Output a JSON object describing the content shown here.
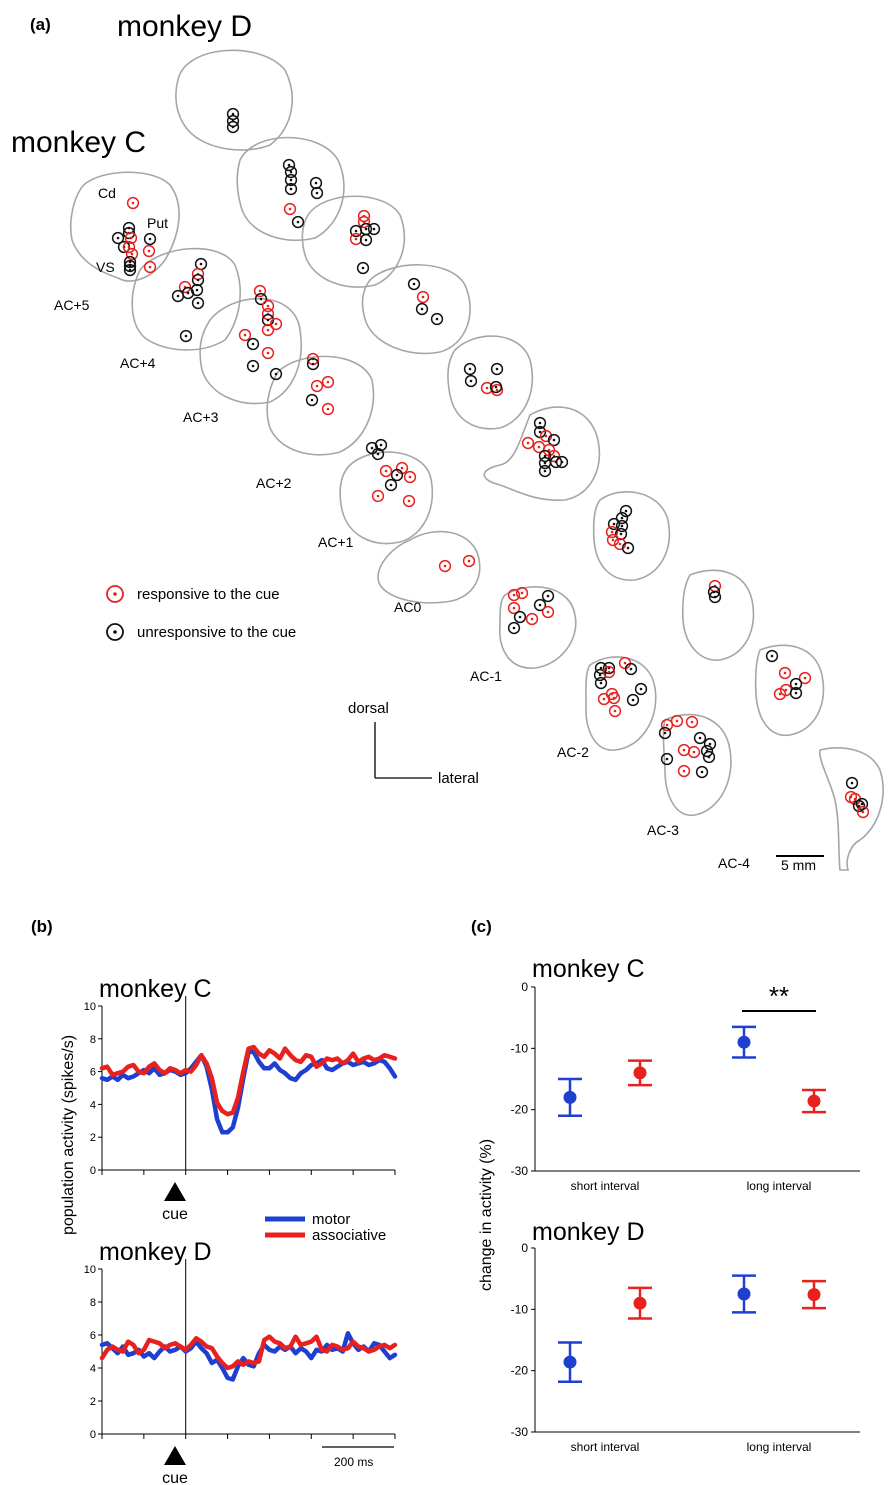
{
  "figure": {
    "panel_labels": {
      "a": "(a)",
      "b": "(b)",
      "c": "(c)"
    },
    "monkey_c": "monkey C",
    "monkey_d": "monkey D"
  },
  "panel_a": {
    "region_labels": {
      "cd": "Cd",
      "put": "Put",
      "vs": "VS"
    },
    "sections_c": [
      "AC+5",
      "AC+4",
      "AC+3",
      "AC+2",
      "AC+1",
      "AC0",
      "AC-1",
      "AC-2",
      "AC-3",
      "AC-4"
    ],
    "legend": {
      "responsive": "responsive to the cue",
      "unresponsive": "unresponsive to the cue"
    },
    "orientation": {
      "dorsal": "dorsal",
      "lateral": "lateral"
    },
    "scale_bar": "5 mm",
    "colors": {
      "responsive": "#e8211f",
      "unresponsive": "#111111",
      "outline": "#a6a6a6"
    }
  },
  "chart_data": [
    {
      "type": "line",
      "panel": "b-top",
      "title": "monkey C",
      "ylabel": "population activity (spikes/s)",
      "ylim": [
        0,
        10
      ],
      "yticks": [
        0,
        2,
        4,
        6,
        8,
        10
      ],
      "xlabel_marker": "cue",
      "legend": [
        "motor",
        "associative"
      ],
      "series": [
        {
          "name": "motor",
          "color": "#1f3fd1",
          "x": [
            -400,
            -375,
            -350,
            -325,
            -300,
            -275,
            -250,
            -225,
            -200,
            -175,
            -150,
            -125,
            -100,
            -75,
            -50,
            -25,
            0,
            25,
            50,
            75,
            100,
            125,
            150,
            175,
            200,
            225,
            250,
            275,
            300,
            325,
            350,
            375,
            400,
            425,
            450,
            475,
            500,
            525,
            550,
            575,
            600,
            625,
            650,
            675,
            700,
            725,
            750,
            775,
            800,
            825,
            850,
            875,
            900,
            925,
            950,
            975,
            1000
          ],
          "y": [
            5.6,
            5.5,
            5.7,
            5.5,
            5.8,
            5.6,
            5.7,
            5.9,
            6.1,
            5.9,
            6.2,
            5.8,
            5.9,
            6.1,
            6.0,
            5.8,
            5.9,
            6.2,
            6.6,
            7.0,
            6.3,
            4.9,
            3.1,
            2.3,
            2.3,
            2.6,
            3.8,
            5.6,
            7.2,
            7.2,
            6.6,
            6.2,
            6.2,
            6.5,
            6.1,
            5.9,
            5.6,
            5.5,
            5.9,
            6.1,
            6.4,
            6.5,
            6.7,
            6.2,
            6.1,
            6.3,
            6.5,
            6.6,
            6.4,
            6.5,
            6.6,
            6.4,
            6.5,
            6.7,
            6.6,
            6.2,
            5.7
          ]
        },
        {
          "name": "associative",
          "color": "#e8211f",
          "x": [
            -400,
            -375,
            -350,
            -325,
            -300,
            -275,
            -250,
            -225,
            -200,
            -175,
            -150,
            -125,
            -100,
            -75,
            -50,
            -25,
            0,
            25,
            50,
            75,
            100,
            125,
            150,
            175,
            200,
            225,
            250,
            275,
            300,
            325,
            350,
            375,
            400,
            425,
            450,
            475,
            500,
            525,
            550,
            575,
            600,
            625,
            650,
            675,
            700,
            725,
            750,
            775,
            800,
            825,
            850,
            875,
            900,
            925,
            950,
            975,
            1000
          ],
          "y": [
            6.2,
            6.3,
            5.8,
            5.9,
            6.0,
            6.3,
            6.4,
            6.0,
            5.9,
            6.3,
            6.5,
            6.1,
            5.9,
            6.2,
            6.1,
            5.9,
            6.1,
            6.0,
            6.4,
            7.0,
            6.5,
            5.6,
            4.1,
            3.6,
            3.4,
            3.5,
            4.4,
            6.0,
            7.4,
            7.5,
            7.1,
            6.9,
            7.3,
            7.1,
            6.8,
            7.4,
            7.0,
            6.7,
            6.6,
            7.0,
            6.9,
            6.3,
            6.5,
            6.8,
            6.7,
            6.8,
            6.5,
            6.7,
            7.1,
            6.6,
            6.8,
            6.9,
            6.7,
            6.8,
            7.0,
            6.9,
            6.8
          ]
        }
      ]
    },
    {
      "type": "line",
      "panel": "b-bottom",
      "title": "monkey D",
      "ylim": [
        0,
        10
      ],
      "yticks": [
        0,
        2,
        4,
        6,
        8,
        10
      ],
      "xlabel_marker": "cue",
      "scale_bar": "200 ms",
      "series": [
        {
          "name": "motor",
          "color": "#1f3fd1",
          "x": [
            -400,
            -375,
            -350,
            -325,
            -300,
            -275,
            -250,
            -225,
            -200,
            -175,
            -150,
            -125,
            -100,
            -75,
            -50,
            -25,
            0,
            25,
            50,
            75,
            100,
            125,
            150,
            175,
            200,
            225,
            250,
            275,
            300,
            325,
            350,
            375,
            400,
            425,
            450,
            475,
            500,
            525,
            550,
            575,
            600,
            625,
            650,
            675,
            700,
            725,
            750,
            775,
            800,
            825,
            850,
            875,
            900,
            925,
            950,
            975,
            1000
          ],
          "y": [
            5.4,
            5.5,
            5.2,
            4.9,
            5.3,
            4.8,
            4.9,
            5.1,
            4.7,
            4.9,
            4.6,
            5.0,
            5.3,
            5.0,
            5.1,
            5.3,
            5.0,
            5.2,
            5.6,
            5.2,
            4.9,
            4.3,
            4.5,
            4.0,
            3.4,
            3.3,
            4.1,
            4.6,
            4.2,
            4.1,
            4.9,
            5.4,
            5.1,
            5.0,
            5.3,
            5.1,
            5.3,
            4.9,
            5.2,
            5.0,
            4.6,
            5.1,
            5.0,
            5.4,
            5.1,
            5.2,
            5.0,
            6.1,
            5.5,
            5.1,
            5.3,
            5.0,
            5.5,
            5.4,
            5.0,
            4.6,
            4.8
          ]
        },
        {
          "name": "associative",
          "color": "#e8211f",
          "x": [
            -400,
            -375,
            -350,
            -325,
            -300,
            -275,
            -250,
            -225,
            -200,
            -175,
            -150,
            -125,
            -100,
            -75,
            -50,
            -25,
            0,
            25,
            50,
            75,
            100,
            125,
            150,
            175,
            200,
            225,
            250,
            275,
            300,
            325,
            350,
            375,
            400,
            425,
            450,
            475,
            500,
            525,
            550,
            575,
            600,
            625,
            650,
            675,
            700,
            725,
            750,
            775,
            800,
            825,
            850,
            875,
            900,
            925,
            950,
            975,
            1000
          ],
          "y": [
            4.6,
            5.1,
            5.3,
            5.1,
            5.0,
            5.6,
            5.4,
            4.9,
            5.1,
            5.7,
            5.6,
            5.5,
            5.2,
            5.4,
            5.5,
            5.3,
            5.1,
            5.4,
            5.8,
            5.6,
            5.3,
            5.2,
            4.7,
            4.3,
            4.0,
            4.1,
            4.4,
            4.2,
            4.4,
            4.3,
            4.4,
            5.7,
            5.9,
            5.6,
            5.5,
            5.2,
            5.3,
            5.9,
            5.4,
            5.5,
            5.6,
            5.9,
            5.1,
            5.0,
            5.4,
            5.3,
            5.1,
            5.2,
            5.6,
            5.3,
            5.2,
            5.0,
            5.1,
            5.3,
            5.4,
            5.2,
            5.4
          ]
        }
      ]
    },
    {
      "type": "scatter",
      "panel": "c-top",
      "title": "monkey C",
      "ylabel": "change in activity (%)",
      "categories": [
        "short interval",
        "long interval"
      ],
      "ylim": [
        -30,
        0
      ],
      "yticks": [
        0,
        -10,
        -20,
        -30
      ],
      "significance": "**",
      "series": [
        {
          "name": "motor",
          "color": "#1f3fd1",
          "values": [
            -18.0,
            -9.0
          ],
          "err": [
            3.0,
            2.5
          ]
        },
        {
          "name": "associative",
          "color": "#e8211f",
          "values": [
            -14.0,
            -18.6
          ],
          "err": [
            2.0,
            1.8
          ]
        }
      ]
    },
    {
      "type": "scatter",
      "panel": "c-bottom",
      "title": "monkey D",
      "categories": [
        "short interval",
        "long interval"
      ],
      "ylim": [
        -30,
        0
      ],
      "yticks": [
        0,
        -10,
        -20,
        -30
      ],
      "series": [
        {
          "name": "motor",
          "color": "#1f3fd1",
          "values": [
            -18.6,
            -7.5
          ],
          "err": [
            3.2,
            3.0
          ]
        },
        {
          "name": "associative",
          "color": "#e8211f",
          "values": [
            -9.0,
            -7.6
          ],
          "err": [
            2.5,
            2.2
          ]
        }
      ]
    }
  ]
}
